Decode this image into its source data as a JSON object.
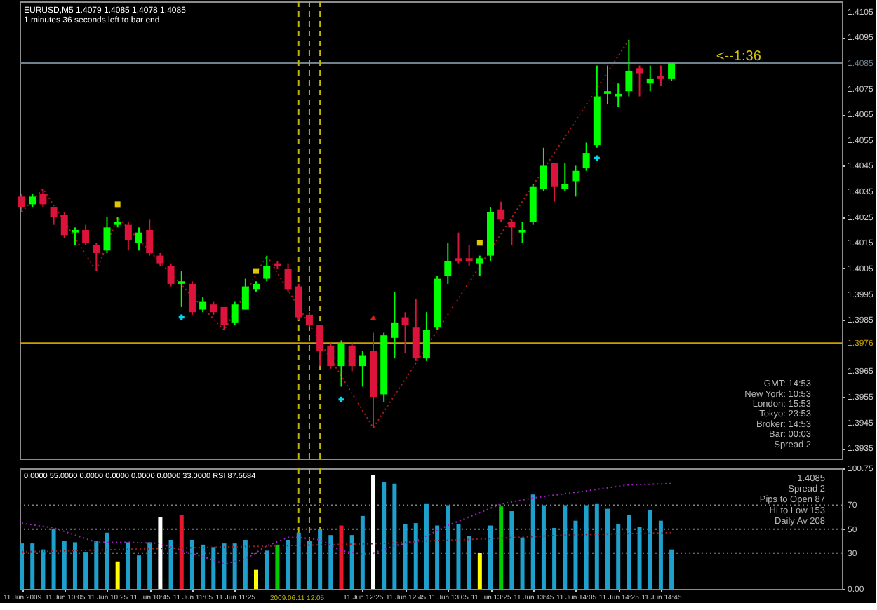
{
  "chart_data": [
    {
      "type": "candlestick",
      "title": "EURUSD,M5 1.4079 1.4085 1.4078 1.4085",
      "subtitle": "1 minutes 36 seconds left to bar end",
      "x": [
        "2009-06-11T09:45",
        "2009-06-11T09:50",
        "2009-06-11T09:55",
        "2009-06-11T10:00",
        "2009-06-11T10:05",
        "2009-06-11T10:10",
        "2009-06-11T10:15",
        "2009-06-11T10:20",
        "2009-06-11T10:25",
        "2009-06-11T10:30",
        "2009-06-11T10:35",
        "2009-06-11T10:40",
        "2009-06-11T10:45",
        "2009-06-11T10:50",
        "2009-06-11T10:55",
        "2009-06-11T11:00",
        "2009-06-11T11:05",
        "2009-06-11T11:10",
        "2009-06-11T11:15",
        "2009-06-11T11:20",
        "2009-06-11T11:25",
        "2009-06-11T11:30",
        "2009-06-11T11:35",
        "2009-06-11T11:40",
        "2009-06-11T11:45",
        "2009-06-11T11:50",
        "2009-06-11T11:55",
        "2009-06-11T12:00",
        "2009-06-11T12:05",
        "2009-06-11T12:10",
        "2009-06-11T12:15",
        "2009-06-11T12:20",
        "2009-06-11T12:25",
        "2009-06-11T12:30",
        "2009-06-11T12:35",
        "2009-06-11T12:40",
        "2009-06-11T12:45",
        "2009-06-11T12:50",
        "2009-06-11T12:55",
        "2009-06-11T13:00",
        "2009-06-11T13:05",
        "2009-06-11T13:10",
        "2009-06-11T13:15",
        "2009-06-11T13:20",
        "2009-06-11T13:25",
        "2009-06-11T13:30",
        "2009-06-11T13:35",
        "2009-06-11T13:40",
        "2009-06-11T13:45",
        "2009-06-11T13:50",
        "2009-06-11T13:55",
        "2009-06-11T14:00",
        "2009-06-11T14:05",
        "2009-06-11T14:10",
        "2009-06-11T14:15",
        "2009-06-11T14:20",
        "2009-06-11T14:25",
        "2009-06-11T14:30",
        "2009-06-11T14:35",
        "2009-06-11T14:40",
        "2009-06-11T14:45",
        "2009-06-11T14:50"
      ],
      "ohlc": [
        [
          1.4033,
          1.4034,
          1.4027,
          1.4029
        ],
        [
          1.403,
          1.4034,
          1.4029,
          1.4033
        ],
        [
          1.4034,
          1.4036,
          1.4029,
          1.403
        ],
        [
          1.4029,
          1.4029,
          1.4022,
          1.4025
        ],
        [
          1.4026,
          1.4027,
          1.4017,
          1.4018
        ],
        [
          1.4019,
          1.4021,
          1.4014,
          1.402
        ],
        [
          1.402,
          1.4022,
          1.4014,
          1.4015
        ],
        [
          1.4014,
          1.4015,
          1.4004,
          1.4011
        ],
        [
          1.4012,
          1.4025,
          1.4011,
          1.4021
        ],
        [
          1.4022,
          1.4025,
          1.4021,
          1.4023
        ],
        [
          1.4022,
          1.4023,
          1.4012,
          1.4016
        ],
        [
          1.4015,
          1.4021,
          1.4012,
          1.4019
        ],
        [
          1.402,
          1.4024,
          1.401,
          1.4011
        ],
        [
          1.401,
          1.4011,
          1.4006,
          1.4007
        ],
        [
          1.4006,
          1.4007,
          1.3998,
          1.3999
        ],
        [
          1.3999,
          1.4004,
          1.399,
          1.4
        ],
        [
          1.3999,
          1.4,
          1.3987,
          1.3988
        ],
        [
          1.3989,
          1.3994,
          1.3988,
          1.3992
        ],
        [
          1.3991,
          1.3992,
          1.3987,
          1.3988
        ],
        [
          1.399,
          1.399,
          1.3981,
          1.3983
        ],
        [
          1.3984,
          1.3992,
          1.3983,
          1.3991
        ],
        [
          1.3989,
          1.4001,
          1.3989,
          1.3998
        ],
        [
          1.3997,
          1.4,
          1.3996,
          1.3999
        ],
        [
          1.4001,
          1.401,
          1.4,
          1.4006
        ],
        [
          1.4007,
          1.4008,
          1.4005,
          1.4006
        ],
        [
          1.4005,
          1.4007,
          1.3996,
          1.3997
        ],
        [
          1.3998,
          1.3999,
          1.3985,
          1.3986
        ],
        [
          1.3987,
          1.3988,
          1.3982,
          1.3983
        ],
        [
          1.3983,
          1.3983,
          1.3967,
          1.3973
        ],
        [
          1.3975,
          1.3976,
          1.3966,
          1.3967
        ],
        [
          1.3967,
          1.3977,
          1.3959,
          1.3976
        ],
        [
          1.3975,
          1.3976,
          1.3965,
          1.3967
        ],
        [
          1.3967,
          1.3973,
          1.3959,
          1.3971
        ],
        [
          1.3973,
          1.398,
          1.3943,
          1.3955
        ],
        [
          1.3956,
          1.398,
          1.3953,
          1.3979
        ],
        [
          1.3978,
          1.3996,
          1.397,
          1.3984
        ],
        [
          1.3986,
          1.3988,
          1.3972,
          1.3983
        ],
        [
          1.3982,
          1.3993,
          1.3969,
          1.397
        ],
        [
          1.397,
          1.3988,
          1.3969,
          1.3981
        ],
        [
          1.3982,
          1.4002,
          1.3981,
          1.4001
        ],
        [
          1.4002,
          1.4015,
          1.3999,
          1.4008
        ],
        [
          1.4009,
          1.4019,
          1.4007,
          1.4008
        ],
        [
          1.4009,
          1.4014,
          1.4006,
          1.4008
        ],
        [
          1.4007,
          1.401,
          1.4002,
          1.4009
        ],
        [
          1.401,
          1.4029,
          1.4008,
          1.4027
        ],
        [
          1.4028,
          1.4031,
          1.4023,
          1.4024
        ],
        [
          1.4023,
          1.4024,
          1.4014,
          1.4021
        ],
        [
          1.4019,
          1.4023,
          1.4015,
          1.402
        ],
        [
          1.4023,
          1.4038,
          1.4022,
          1.4037
        ],
        [
          1.4036,
          1.4052,
          1.4035,
          1.4045
        ],
        [
          1.4046,
          1.4046,
          1.4031,
          1.4037
        ],
        [
          1.4036,
          1.4046,
          1.4035,
          1.4038
        ],
        [
          1.4039,
          1.4045,
          1.4033,
          1.4043
        ],
        [
          1.4044,
          1.4054,
          1.4043,
          1.405
        ],
        [
          1.4053,
          1.4084,
          1.4052,
          1.4072
        ],
        [
          1.4073,
          1.4084,
          1.4069,
          1.4074
        ],
        [
          1.4072,
          1.4077,
          1.4068,
          1.4073
        ],
        [
          1.4074,
          1.4094,
          1.4072,
          1.4082
        ],
        [
          1.4083,
          1.4084,
          1.4072,
          1.4081
        ],
        [
          1.4077,
          1.4084,
          1.4074,
          1.4079
        ],
        [
          1.408,
          1.4084,
          1.4076,
          1.4079
        ],
        [
          1.4079,
          1.4085,
          1.4078,
          1.4085
        ]
      ],
      "colors": [
        "#dc143c",
        "#00ff00",
        "#dc143c",
        "#dc143c",
        "#dc143c",
        "#00ff00",
        "#dc143c",
        "#dc143c",
        "#00ff00",
        "#00ff00",
        "#dc143c",
        "#00ff00",
        "#dc143c",
        "#dc143c",
        "#dc143c",
        "#00ff00",
        "#dc143c",
        "#00ff00",
        "#dc143c",
        "#dc143c",
        "#00ff00",
        "#00ff00",
        "#00ff00",
        "#00ff00",
        "#dc143c",
        "#dc143c",
        "#dc143c",
        "#dc143c",
        "#dc143c",
        "#dc143c",
        "#00ff00",
        "#dc143c",
        "#00ff00",
        "#dc143c",
        "#00ff00",
        "#00ff00",
        "#dc143c",
        "#dc143c",
        "#00ff00",
        "#00ff00",
        "#00ff00",
        "#dc143c",
        "#dc143c",
        "#00ff00",
        "#00ff00",
        "#dc143c",
        "#dc143c",
        "#00ff00",
        "#00ff00",
        "#00ff00",
        "#dc143c",
        "#00ff00",
        "#00ff00",
        "#00ff00",
        "#00ff00",
        "#00ff00",
        "#00ff00",
        "#00ff00",
        "#dc143c",
        "#00ff00",
        "#dc143c",
        "#00ff00"
      ],
      "series": [
        {
          "type": "line",
          "color": "#b01818",
          "line_style": "dotted",
          "x": [
            "2009-06-11T09:45",
            "2009-06-11T09:55",
            "2009-06-11T10:20",
            "2009-06-11T10:30",
            "2009-06-11T11:20",
            "2009-06-11T11:40",
            "2009-06-11T12:30",
            "2009-06-11T14:30"
          ],
          "values": [
            1.4027,
            1.4036,
            1.4004,
            1.4025,
            1.3981,
            1.401,
            1.3943,
            1.4094
          ]
        },
        {
          "type": "scatter",
          "marker": "cross",
          "color": "#00d8f0",
          "x": [
            "2009-06-11T11:00",
            "2009-06-11T12:15",
            "2009-06-11T14:15"
          ],
          "values": [
            1.3986,
            1.3954,
            1.4048
          ]
        },
        {
          "type": "scatter",
          "marker": "square",
          "color": "#e0c800",
          "x": [
            "2009-06-11T10:30",
            "2009-06-11T11:35",
            "2009-06-11T13:20"
          ],
          "values": [
            1.403,
            1.4004,
            1.4015
          ]
        },
        {
          "type": "scatter",
          "marker": "triangle",
          "color": "#e01818",
          "x": [
            "2009-06-11T12:30"
          ],
          "values": [
            1.3986
          ]
        }
      ],
      "xlim": [
        "2009-06-11T09:44",
        "2009-06-11T16:10"
      ],
      "ylim": [
        1.3931,
        1.4109
      ],
      "yticks": [
        1.4105,
        1.4095,
        1.4075,
        1.4065,
        1.4055,
        1.4045,
        1.4035,
        1.4025,
        1.4015,
        1.4005,
        1.3995,
        1.3985,
        1.3965,
        1.3955,
        1.3945,
        1.3935
      ],
      "tick_labels": "y",
      "ref_lines": [
        {
          "axis": "y",
          "value": 1.4085,
          "label": "1.4085",
          "color": "#70808c"
        },
        {
          "axis": "y",
          "value": 1.3976,
          "label": "1.3976",
          "color": "#c8a000"
        },
        {
          "axis": "x",
          "value": "2009-06-11T11:55",
          "color": "#bcb400",
          "line_style": "dashed"
        },
        {
          "axis": "x",
          "value": "2009-06-11T12:00",
          "color": "#bcb400",
          "line_style": "dashed"
        },
        {
          "axis": "x",
          "value": "2009-06-11T12:05",
          "color": "#bcb400",
          "line_style": "dashed"
        }
      ],
      "annotations": [
        {
          "text": "<--1:36",
          "x": "2009-06-11T15:11",
          "y": 1.4085
        },
        "GMT: 14:53",
        "New York: 10:53",
        "London: 15:53",
        "Tokyo: 23:53",
        "Broker: 14:53",
        "Bar: 00:03",
        "Spread 2"
      ]
    },
    {
      "type": "bar",
      "title": "0.0000 55.0000 0.0000 0.0000 0.0000 0.0000 33.0000 RSI 87.5684",
      "x": [
        "2009-06-11T09:45",
        "2009-06-11T09:50",
        "2009-06-11T09:55",
        "2009-06-11T10:00",
        "2009-06-11T10:05",
        "2009-06-11T10:10",
        "2009-06-11T10:15",
        "2009-06-11T10:20",
        "2009-06-11T10:25",
        "2009-06-11T10:30",
        "2009-06-11T10:35",
        "2009-06-11T10:40",
        "2009-06-11T10:45",
        "2009-06-11T10:50",
        "2009-06-11T10:55",
        "2009-06-11T11:00",
        "2009-06-11T11:05",
        "2009-06-11T11:10",
        "2009-06-11T11:15",
        "2009-06-11T11:20",
        "2009-06-11T11:25",
        "2009-06-11T11:30",
        "2009-06-11T11:35",
        "2009-06-11T11:40",
        "2009-06-11T11:45",
        "2009-06-11T11:50",
        "2009-06-11T11:55",
        "2009-06-11T12:00",
        "2009-06-11T12:05",
        "2009-06-11T12:10",
        "2009-06-11T12:15",
        "2009-06-11T12:20",
        "2009-06-11T12:25",
        "2009-06-11T12:30",
        "2009-06-11T12:35",
        "2009-06-11T12:40",
        "2009-06-11T12:45",
        "2009-06-11T12:50",
        "2009-06-11T12:55",
        "2009-06-11T13:00",
        "2009-06-11T13:05",
        "2009-06-11T13:10",
        "2009-06-11T13:15",
        "2009-06-11T13:20",
        "2009-06-11T13:25",
        "2009-06-11T13:30",
        "2009-06-11T13:35",
        "2009-06-11T13:40",
        "2009-06-11T13:45",
        "2009-06-11T13:50",
        "2009-06-11T13:55",
        "2009-06-11T14:00",
        "2009-06-11T14:05",
        "2009-06-11T14:10",
        "2009-06-11T14:15",
        "2009-06-11T14:20",
        "2009-06-11T14:25",
        "2009-06-11T14:30",
        "2009-06-11T14:35",
        "2009-06-11T14:40",
        "2009-06-11T14:45",
        "2009-06-11T14:50"
      ],
      "values": [
        38,
        38,
        33,
        50,
        40,
        39,
        31,
        40,
        47,
        23,
        39,
        28,
        39,
        60,
        41,
        62,
        41,
        37,
        35,
        38,
        38,
        41,
        16,
        32,
        37,
        41,
        47,
        40,
        50,
        45,
        53,
        45,
        61,
        95,
        89,
        88,
        54,
        55,
        71,
        53,
        70,
        54,
        44,
        30,
        53,
        69,
        65,
        43,
        79,
        70,
        51,
        70,
        57,
        70,
        71,
        67,
        54,
        62,
        52,
        66,
        57,
        33
      ],
      "colors": [
        "#1fa0cc",
        "#1fa0cc",
        "#1fa0cc",
        "#1fa0cc",
        "#1fa0cc",
        "#1fa0cc",
        "#1fa0cc",
        "#1fa0cc",
        "#1fa0cc",
        "#ffff00",
        "#1fa0cc",
        "#1fa0cc",
        "#1fa0cc",
        "#ffffff",
        "#1fa0cc",
        "#e8182c",
        "#1fa0cc",
        "#1fa0cc",
        "#1fa0cc",
        "#1fa0cc",
        "#1fa0cc",
        "#1fa0cc",
        "#ffff00",
        "#1fa0cc",
        "#00cc00",
        "#1fa0cc",
        "#1fa0cc",
        "#1fa0cc",
        "#1fa0cc",
        "#1fa0cc",
        "#e8182c",
        "#1fa0cc",
        "#1fa0cc",
        "#ffffff",
        "#1fa0cc",
        "#1fa0cc",
        "#1fa0cc",
        "#1fa0cc",
        "#1fa0cc",
        "#1fa0cc",
        "#1fa0cc",
        "#1fa0cc",
        "#1fa0cc",
        "#ffff00",
        "#1fa0cc",
        "#00cc00",
        "#1fa0cc",
        "#1fa0cc",
        "#1fa0cc",
        "#1fa0cc",
        "#1fa0cc",
        "#1fa0cc",
        "#1fa0cc",
        "#1fa0cc",
        "#1fa0cc",
        "#1fa0cc",
        "#1fa0cc",
        "#1fa0cc",
        "#1fa0cc",
        "#1fa0cc",
        "#1fa0cc",
        "#1fa0cc"
      ],
      "series": [
        {
          "type": "line",
          "color": "#a020c0",
          "line_style": "dotted",
          "x": [
            "2009-06-11T09:45",
            "2009-06-11T10:00",
            "2009-06-11T10:20",
            "2009-06-11T10:35",
            "2009-06-11T10:50",
            "2009-06-11T11:00",
            "2009-06-11T11:10",
            "2009-06-11T11:20",
            "2009-06-11T11:30",
            "2009-06-11T11:40",
            "2009-06-11T11:50",
            "2009-06-11T11:55",
            "2009-06-11T12:05",
            "2009-06-11T12:15",
            "2009-06-11T12:25",
            "2009-06-11T12:30",
            "2009-06-11T12:40",
            "2009-06-11T12:50",
            "2009-06-11T13:05",
            "2009-06-11T13:30",
            "2009-06-11T13:45",
            "2009-06-11T14:10",
            "2009-06-11T14:30",
            "2009-06-11T14:50"
          ],
          "values": [
            55,
            51,
            39,
            39,
            38,
            32,
            27,
            21,
            25,
            36,
            43,
            43,
            41,
            32,
            29,
            30,
            36,
            40,
            53,
            71,
            76,
            82,
            87,
            88
          ]
        },
        {
          "type": "line",
          "color": "#9a1c1c",
          "line_style": "dotted",
          "x": [
            "2009-06-11T09:45",
            "2009-06-11T10:55",
            "2009-06-11T11:45",
            "2009-06-11T12:10",
            "2009-06-11T12:35",
            "2009-06-11T12:55",
            "2009-06-11T13:25",
            "2009-06-11T14:00",
            "2009-06-11T14:50"
          ],
          "values": [
            31,
            34,
            36,
            37,
            38,
            40,
            42,
            45,
            47
          ]
        }
      ],
      "xlim": [
        "2009-06-11T09:44",
        "2009-06-11T16:10"
      ],
      "xticks": [
        {
          "value": "2009-06-11T09:45",
          "label": "11 Jun 2009"
        },
        {
          "value": "2009-06-11T10:05",
          "label": "11 Jun 10:05"
        },
        {
          "value": "2009-06-11T10:25",
          "label": "11 Jun 10:25"
        },
        {
          "value": "2009-06-11T10:45",
          "label": "11 Jun 10:45"
        },
        {
          "value": "2009-06-11T11:05",
          "label": "11 Jun 11:05"
        },
        {
          "value": "2009-06-11T11:25",
          "label": "11 Jun 11:25"
        },
        {
          "value": "2009-06-11T12:25",
          "label": "11 Jun 12:25"
        },
        {
          "value": "2009-06-11T12:45",
          "label": "11 Jun 12:45"
        },
        {
          "value": "2009-06-11T13:05",
          "label": "11 Jun 13:05"
        },
        {
          "value": "2009-06-11T13:25",
          "label": "11 Jun 13:25"
        },
        {
          "value": "2009-06-11T13:45",
          "label": "11 Jun 13:45"
        },
        {
          "value": "2009-06-11T14:05",
          "label": "11 Jun 14:05"
        },
        {
          "value": "2009-06-11T14:25",
          "label": "11 Jun 14:25"
        },
        {
          "value": "2009-06-11T14:45",
          "label": "11 Jun 14:45"
        }
      ],
      "ylim": [
        0,
        100.75
      ],
      "yticks": [
        {
          "value": 0,
          "label": "0.00"
        },
        30,
        50,
        70,
        100.75
      ],
      "ref_lines": [
        {
          "axis": "y",
          "value": 30,
          "color": "#808080",
          "line_style": "dotted"
        },
        {
          "axis": "y",
          "value": 50,
          "color": "#808080",
          "line_style": "dotted"
        },
        {
          "axis": "y",
          "value": 70,
          "color": "#808080",
          "line_style": "dotted"
        },
        {
          "axis": "x",
          "value": "2009-06-11T11:55",
          "color": "#bcb400",
          "line_style": "dashed"
        },
        {
          "axis": "x",
          "value": "2009-06-11T12:00",
          "color": "#bcb400",
          "line_style": "dashed"
        },
        {
          "axis": "x",
          "value": "2009-06-11T12:05",
          "label": "2009.06.11 12:05",
          "color": "#bcb400",
          "line_style": "dashed"
        }
      ],
      "annotations": [
        "1.4085",
        "Spread 2",
        "Pips to Open 87",
        "Hi to Low 153",
        "Daily Av 208"
      ]
    }
  ]
}
